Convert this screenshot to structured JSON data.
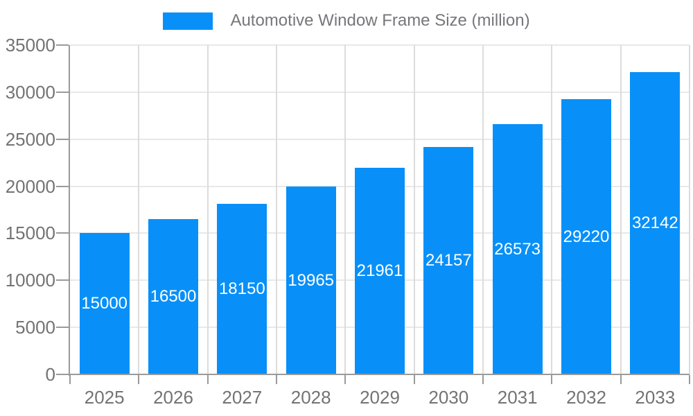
{
  "chart_data": {
    "type": "bar",
    "title": "Automotive Window Frame Size (million)",
    "legend_position": "top",
    "categories": [
      "2025",
      "2026",
      "2027",
      "2028",
      "2029",
      "2030",
      "2031",
      "2032",
      "2033"
    ],
    "series": [
      {
        "name": "Automotive Window Frame Size (million)",
        "values": [
          15000,
          16500,
          18150,
          19965,
          21961,
          24157,
          26573,
          29220,
          32142
        ]
      }
    ],
    "bar_value_labels": "inside-center-white",
    "xlabel": "",
    "ylabel": "",
    "ylim": [
      0,
      35000
    ],
    "ytick_step": 5000,
    "yticks": [
      0,
      5000,
      10000,
      15000,
      20000,
      25000,
      30000,
      35000
    ],
    "grid": true,
    "colors": {
      "bar": "#0890F8",
      "axis": "#9a9a9a",
      "grid_h": "#e8e8e8",
      "grid_v": "#dcdcdc",
      "tick_label": "#737373",
      "legend_text": "#76767b",
      "value_label": "#ffffff",
      "background": "#ffffff"
    }
  }
}
